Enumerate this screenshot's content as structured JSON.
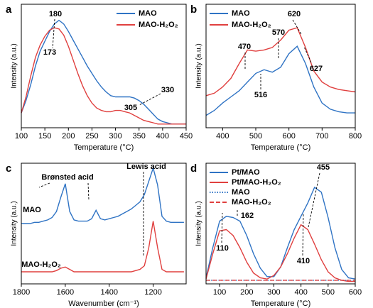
{
  "chart_data": [
    {
      "type": "line",
      "label": "a",
      "x_label": "Temperature (°C)",
      "y_label": "Intensity (a.u.)",
      "xlim": [
        100,
        450
      ],
      "xticks": [
        100,
        150,
        200,
        250,
        300,
        350,
        400,
        450
      ],
      "ylim": [
        0,
        1
      ],
      "legend": "upper right",
      "x": [
        100,
        110,
        120,
        130,
        140,
        150,
        160,
        170,
        180,
        190,
        200,
        210,
        220,
        230,
        240,
        250,
        260,
        270,
        280,
        290,
        300,
        310,
        320,
        330,
        340,
        350,
        360,
        370,
        380,
        390,
        400,
        410,
        420,
        430,
        440,
        450
      ],
      "series": [
        {
          "name": "MAO",
          "color": "#2f73c4",
          "dash": "solid",
          "values": [
            0.12,
            0.22,
            0.35,
            0.5,
            0.62,
            0.7,
            0.78,
            0.84,
            0.87,
            0.84,
            0.78,
            0.71,
            0.64,
            0.57,
            0.5,
            0.44,
            0.38,
            0.33,
            0.29,
            0.26,
            0.25,
            0.25,
            0.25,
            0.25,
            0.24,
            0.22,
            0.19,
            0.15,
            0.11,
            0.07,
            0.05,
            0.04,
            0.03,
            0.03,
            0.03,
            0.03
          ]
        },
        {
          "name": "MAO-H₂O₂",
          "color": "#e0403f",
          "dash": "solid",
          "values": [
            0.12,
            0.25,
            0.42,
            0.57,
            0.67,
            0.74,
            0.79,
            0.81,
            0.8,
            0.75,
            0.66,
            0.55,
            0.44,
            0.34,
            0.26,
            0.2,
            0.16,
            0.14,
            0.13,
            0.13,
            0.14,
            0.14,
            0.13,
            0.12,
            0.1,
            0.08,
            0.06,
            0.05,
            0.04,
            0.03,
            0.03,
            0.03,
            0.03,
            0.03,
            0.03,
            0.03
          ]
        }
      ],
      "annotations": [
        {
          "text": "180",
          "color": "#2f73c4"
        },
        {
          "text": "173",
          "color": "#d03a3a"
        },
        {
          "text": "330",
          "color": "#2f73c4"
        },
        {
          "text": "305",
          "color": "#d03a3a"
        }
      ]
    },
    {
      "type": "line",
      "label": "b",
      "x_label": "Temperature (°C)",
      "y_label": "Intensity (a.u.)",
      "xlim": [
        350,
        800
      ],
      "xticks": [
        400,
        500,
        600,
        700,
        800
      ],
      "ylim": [
        0,
        1
      ],
      "legend": "upper left",
      "x": [
        350,
        375,
        400,
        425,
        450,
        475,
        500,
        525,
        550,
        575,
        600,
        625,
        650,
        675,
        700,
        725,
        750,
        775,
        800
      ],
      "series": [
        {
          "name": "MAO",
          "color": "#2f73c4",
          "dash": "solid",
          "values": [
            0.1,
            0.14,
            0.2,
            0.25,
            0.3,
            0.37,
            0.44,
            0.47,
            0.45,
            0.49,
            0.6,
            0.66,
            0.52,
            0.33,
            0.2,
            0.15,
            0.13,
            0.12,
            0.12
          ]
        },
        {
          "name": "MAO-H₂O₂",
          "color": "#e0403f",
          "dash": "solid",
          "values": [
            0.26,
            0.28,
            0.33,
            0.4,
            0.52,
            0.63,
            0.62,
            0.63,
            0.65,
            0.71,
            0.79,
            0.81,
            0.65,
            0.46,
            0.37,
            0.33,
            0.31,
            0.3,
            0.29
          ]
        }
      ],
      "annotations": [
        {
          "text": "470",
          "color": "#d03a3a"
        },
        {
          "text": "570",
          "color": "#d03a3a"
        },
        {
          "text": "620",
          "color": "#d03a3a"
        },
        {
          "text": "516",
          "color": "#2f73c4"
        },
        {
          "text": "627",
          "color": "#2f73c4"
        }
      ]
    },
    {
      "type": "line",
      "label": "c",
      "x_label": "Wavenumber (cm⁻¹)",
      "y_label": "Intensity (a.u.)",
      "xlim": [
        1800,
        1050
      ],
      "xticks": [
        1800,
        1600,
        1400,
        1200
      ],
      "ylim": [
        0,
        1
      ],
      "legend": "none",
      "x": [
        1800,
        1780,
        1760,
        1740,
        1720,
        1700,
        1680,
        1660,
        1640,
        1620,
        1600,
        1580,
        1560,
        1540,
        1520,
        1500,
        1480,
        1460,
        1440,
        1420,
        1400,
        1380,
        1360,
        1340,
        1320,
        1300,
        1280,
        1260,
        1240,
        1220,
        1200,
        1180,
        1160,
        1140,
        1120,
        1100,
        1080,
        1060
      ],
      "series": [
        {
          "name": "MAO",
          "color": "#2f73c4",
          "dash": "solid",
          "values": [
            0.5,
            0.5,
            0.5,
            0.51,
            0.51,
            0.52,
            0.53,
            0.55,
            0.6,
            0.72,
            0.83,
            0.6,
            0.53,
            0.52,
            0.52,
            0.52,
            0.54,
            0.61,
            0.54,
            0.53,
            0.54,
            0.55,
            0.56,
            0.58,
            0.6,
            0.62,
            0.65,
            0.68,
            0.74,
            0.85,
            0.96,
            0.82,
            0.56,
            0.52,
            0.51,
            0.51,
            0.51,
            0.51
          ]
        },
        {
          "name": "MAO-H₂O₂",
          "color": "#e0403f",
          "dash": "solid",
          "values": [
            0.1,
            0.1,
            0.1,
            0.1,
            0.1,
            0.1,
            0.1,
            0.1,
            0.11,
            0.13,
            0.14,
            0.12,
            0.1,
            0.1,
            0.1,
            0.1,
            0.1,
            0.1,
            0.1,
            0.1,
            0.1,
            0.1,
            0.1,
            0.1,
            0.1,
            0.1,
            0.11,
            0.12,
            0.15,
            0.3,
            0.52,
            0.3,
            0.12,
            0.1,
            0.1,
            0.1,
            0.1,
            0.1
          ]
        }
      ],
      "annotations": [
        {
          "text": "Brønsted acid",
          "color": "#000000"
        },
        {
          "text": "Lewis acid",
          "color": "#000000"
        },
        {
          "text": "MAO",
          "color": "#2f73c4"
        },
        {
          "text": "MAO-H₂O₂",
          "color": "#d03a3a"
        }
      ]
    },
    {
      "type": "line",
      "label": "d",
      "x_label": "Temperature (°C)",
      "y_label": "Intensity (a.u.)",
      "xlim": [
        50,
        600
      ],
      "xticks": [
        100,
        200,
        300,
        400,
        500,
        600
      ],
      "ylim": [
        0,
        1
      ],
      "legend": "upper left",
      "x": [
        50,
        75,
        100,
        125,
        150,
        175,
        200,
        225,
        250,
        275,
        300,
        325,
        350,
        375,
        400,
        425,
        450,
        475,
        500,
        525,
        550,
        575,
        600
      ],
      "series": [
        {
          "name": "Pt/MAO",
          "color": "#2f73c4",
          "dash": "solid",
          "values": [
            0.05,
            0.3,
            0.52,
            0.56,
            0.55,
            0.52,
            0.4,
            0.25,
            0.13,
            0.06,
            0.06,
            0.14,
            0.3,
            0.45,
            0.56,
            0.67,
            0.8,
            0.76,
            0.55,
            0.3,
            0.12,
            0.05,
            0.04
          ]
        },
        {
          "name": "Pt/MAO-H₂O₂",
          "color": "#e0403f",
          "dash": "solid",
          "values": [
            0.04,
            0.25,
            0.44,
            0.45,
            0.4,
            0.3,
            0.18,
            0.09,
            0.05,
            0.04,
            0.07,
            0.14,
            0.25,
            0.38,
            0.49,
            0.45,
            0.33,
            0.2,
            0.1,
            0.05,
            0.03,
            0.02,
            0.02
          ]
        },
        {
          "name": "MAO",
          "color": "#2f73c4",
          "dash": "dotted",
          "values": [
            0.03,
            0.03,
            0.03,
            0.03,
            0.03,
            0.03,
            0.03,
            0.03,
            0.03,
            0.03,
            0.03,
            0.03,
            0.03,
            0.03,
            0.03,
            0.03,
            0.03,
            0.03,
            0.03,
            0.03,
            0.03,
            0.03,
            0.03
          ]
        },
        {
          "name": "MAO-H₂O₂",
          "color": "#e0403f",
          "dash": "dashed",
          "values": [
            0.03,
            0.03,
            0.03,
            0.03,
            0.03,
            0.03,
            0.03,
            0.03,
            0.03,
            0.03,
            0.03,
            0.03,
            0.03,
            0.03,
            0.03,
            0.03,
            0.03,
            0.03,
            0.03,
            0.03,
            0.03,
            0.03,
            0.03
          ]
        }
      ],
      "annotations": [
        {
          "text": "455",
          "color": "#000000"
        },
        {
          "text": "162",
          "color": "#000000"
        },
        {
          "text": "110",
          "color": "#000000"
        },
        {
          "text": "410",
          "color": "#000000"
        }
      ]
    }
  ]
}
